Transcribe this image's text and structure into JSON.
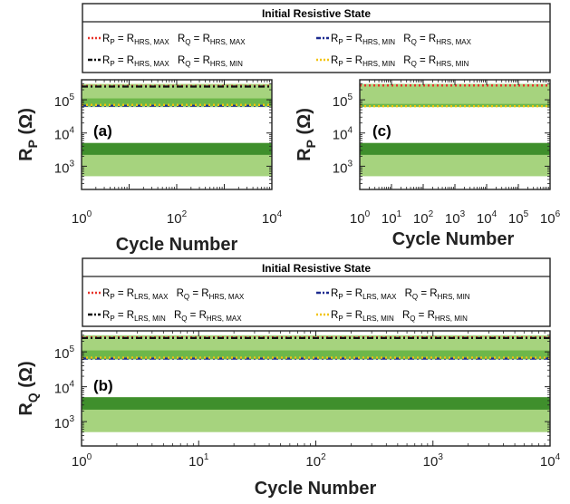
{
  "chart_data": [
    {
      "panel": "(a)",
      "type": "area",
      "x_scale": "log",
      "y_scale": "log",
      "xlim": [
        1,
        10000
      ],
      "ylim": [
        200,
        400000
      ],
      "xlabel": "Cycle Number",
      "ylabel": "R_P (Ω)",
      "xticks": [
        {
          "base": "10",
          "exp": "0",
          "value": 1
        },
        {
          "base": "10",
          "exp": "2",
          "value": 100
        },
        {
          "base": "10",
          "exp": "4",
          "value": 10000
        }
      ],
      "yticks": [
        {
          "base": "10",
          "exp": "3",
          "value": 1000
        },
        {
          "base": "10",
          "exp": "4",
          "value": 10000
        },
        {
          "base": "10",
          "exp": "5",
          "value": 100000
        }
      ],
      "bands": [
        {
          "from": 60000,
          "to": 300000,
          "color": "#a6d37e"
        },
        {
          "from": 65000,
          "to": 110000,
          "color": "#6db74a"
        },
        {
          "from": 500,
          "to": 5000,
          "color": "#a6d37e"
        },
        {
          "from": 2200,
          "to": 5000,
          "color": "#3f8f2c"
        }
      ],
      "series": [
        {
          "style": "red-dotted",
          "y": 260000
        },
        {
          "style": "black-dashdot",
          "y": 250000
        },
        {
          "style": "blue-dashdot",
          "y": 66000
        },
        {
          "style": "yellow-dotted",
          "y": 70000
        }
      ]
    },
    {
      "panel": "(c)",
      "type": "area",
      "x_scale": "log",
      "y_scale": "log",
      "xlim": [
        1,
        1000000
      ],
      "ylim": [
        200,
        400000
      ],
      "xlabel": "Cycle Number",
      "ylabel": "R_P (Ω)",
      "xticks": [
        {
          "base": "10",
          "exp": "0",
          "value": 1
        },
        {
          "base": "10",
          "exp": "1",
          "value": 10
        },
        {
          "base": "10",
          "exp": "2",
          "value": 100
        },
        {
          "base": "10",
          "exp": "3",
          "value": 1000
        },
        {
          "base": "10",
          "exp": "4",
          "value": 10000
        },
        {
          "base": "10",
          "exp": "5",
          "value": 100000
        },
        {
          "base": "10",
          "exp": "6",
          "value": 1000000
        }
      ],
      "yticks": [
        {
          "base": "10",
          "exp": "3",
          "value": 1000
        },
        {
          "base": "10",
          "exp": "4",
          "value": 10000
        },
        {
          "base": "10",
          "exp": "5",
          "value": 100000
        }
      ],
      "bands": [
        {
          "from": 60000,
          "to": 300000,
          "color": "#a6d37e"
        },
        {
          "from": 62000,
          "to": 75000,
          "color": "#6db74a"
        },
        {
          "from": 500,
          "to": 5000,
          "color": "#a6d37e"
        },
        {
          "from": 2200,
          "to": 5000,
          "color": "#3f8f2c"
        }
      ],
      "series": [
        {
          "style": "red-dotted",
          "y": 270000
        },
        {
          "style": "yellow-dotted",
          "y": 64000
        }
      ]
    },
    {
      "panel": "(b)",
      "type": "area",
      "x_scale": "log",
      "y_scale": "log",
      "xlim": [
        1,
        10000
      ],
      "ylim": [
        200,
        400000
      ],
      "xlabel": "Cycle Number",
      "ylabel": "R_Q (Ω)",
      "xticks": [
        {
          "base": "10",
          "exp": "0",
          "value": 1
        },
        {
          "base": "10",
          "exp": "1",
          "value": 10
        },
        {
          "base": "10",
          "exp": "2",
          "value": 100
        },
        {
          "base": "10",
          "exp": "3",
          "value": 1000
        },
        {
          "base": "10",
          "exp": "4",
          "value": 10000
        }
      ],
      "yticks": [
        {
          "base": "10",
          "exp": "3",
          "value": 1000
        },
        {
          "base": "10",
          "exp": "4",
          "value": 10000
        },
        {
          "base": "10",
          "exp": "5",
          "value": 100000
        }
      ],
      "bands": [
        {
          "from": 60000,
          "to": 300000,
          "color": "#a6d37e"
        },
        {
          "from": 62000,
          "to": 110000,
          "color": "#6db74a"
        },
        {
          "from": 500,
          "to": 5000,
          "color": "#a6d37e"
        },
        {
          "from": 2200,
          "to": 5000,
          "color": "#3f8f2c"
        }
      ],
      "series": [
        {
          "style": "red-dotted",
          "y": 260000
        },
        {
          "style": "black-dashdot",
          "y": 250000
        },
        {
          "style": "blue-dashdot",
          "y": 64000
        },
        {
          "style": "yellow-dotted",
          "y": 68000
        }
      ]
    }
  ],
  "legends": [
    {
      "title": "Initial Resistive State",
      "rows": [
        [
          {
            "style": "red-dotted",
            "p_sub": "HRS, MAX",
            "q_sub": "HRS, MAX"
          },
          {
            "style": "blue-dashdot",
            "p_sub": "HRS, MIN",
            "q_sub": "HRS, MAX"
          }
        ],
        [
          {
            "style": "black-dashdot",
            "p_sub": "HRS, MAX",
            "q_sub": "HRS, MIN"
          },
          {
            "style": "yellow-dotted",
            "p_sub": "HRS, MIN",
            "q_sub": "HRS, MIN"
          }
        ]
      ]
    },
    {
      "title": "Initial Resistive State",
      "rows": [
        [
          {
            "style": "red-dotted",
            "p_sub": "LRS, MAX",
            "q_sub": "HRS, MAX"
          },
          {
            "style": "blue-dashdot",
            "p_sub": "LRS, MAX",
            "q_sub": "HRS, MIN"
          }
        ],
        [
          {
            "style": "black-dashdot",
            "p_sub": "LRS, MIN",
            "q_sub": "HRS, MAX"
          },
          {
            "style": "yellow-dotted",
            "p_sub": "LRS, MIN",
            "q_sub": "HRS, MIN"
          }
        ]
      ]
    }
  ],
  "text": {
    "r": "R",
    "p": "P",
    "q": "Q",
    "eq": " = ",
    "ohm": "(Ω)"
  },
  "colors": {
    "light_band": "#a6d37e",
    "mid_band": "#6db74a",
    "dark_band": "#3f8f2c",
    "red": "#e8332a",
    "black": "#111111",
    "blue": "#1c2a8f",
    "yellow": "#f2c40f"
  }
}
